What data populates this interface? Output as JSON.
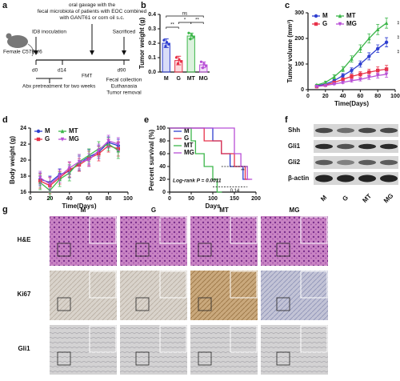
{
  "panel_a": {
    "label": "a",
    "mouse": "Female C57BL/6",
    "inoculation": "ID8 inoculation",
    "gavage": "oral gavage with the fecal microbiota of patients with EOC combined with GANT61 or corn oil s.c.",
    "sacrificed": "Sacrificed",
    "d0": "d0",
    "d14": "d14",
    "fmt": "FMT",
    "d90": "d90",
    "abx": "Abx pretreatment for two weeks",
    "end": [
      "Fecal collection",
      "Euthanasia",
      "Tumor removal"
    ]
  },
  "chart_data": [
    {
      "type": "bar",
      "label": "b",
      "ylabel": "Tumor weight (g)",
      "categories": [
        "M",
        "G",
        "MT",
        "MG"
      ],
      "values": [
        0.2,
        0.08,
        0.25,
        0.05
      ],
      "errors": [
        0.03,
        0.03,
        0.02,
        0.02
      ],
      "colors": [
        "#2f3fd0",
        "#e8334a",
        "#3cb64a",
        "#b84fd6"
      ],
      "ylim": [
        0,
        0.4
      ],
      "yticks": [
        {
          "value": 0,
          "label": "0.0"
        },
        0.1,
        0.2,
        0.3,
        0.4
      ],
      "annotations": [
        "**",
        "*",
        "ns",
        "**"
      ]
    },
    {
      "type": "line",
      "label": "c",
      "ylabel": "Tumor volume (mm³)",
      "xlabel": "Time(Days)",
      "x": [
        10,
        20,
        30,
        40,
        50,
        60,
        70,
        80,
        90
      ],
      "xlim": [
        0,
        100
      ],
      "xticks": [
        0,
        20,
        40,
        60,
        80,
        100
      ],
      "ylim": [
        0,
        300
      ],
      "yticks": [
        0,
        100,
        200,
        300
      ],
      "legend_columns": 2,
      "series": [
        {
          "name": "M",
          "color": "#2f3fd0",
          "marker": "circle",
          "values": [
            15,
            22,
            35,
            55,
            75,
            100,
            130,
            160,
            185
          ],
          "errors": [
            3,
            4,
            6,
            8,
            10,
            12,
            14,
            15,
            18
          ]
        },
        {
          "name": "G",
          "color": "#e8334a",
          "marker": "square",
          "values": [
            12,
            18,
            28,
            40,
            52,
            60,
            68,
            75,
            80
          ],
          "errors": [
            2,
            3,
            4,
            6,
            8,
            10,
            12,
            14,
            15
          ]
        },
        {
          "name": "MT",
          "color": "#3cb64a",
          "marker": "triangle",
          "values": [
            18,
            28,
            50,
            80,
            120,
            160,
            200,
            235,
            260
          ],
          "errors": [
            3,
            5,
            8,
            10,
            12,
            15,
            18,
            20,
            20
          ]
        },
        {
          "name": "MG",
          "color": "#b84fd6",
          "marker": "triangle-down",
          "values": [
            12,
            16,
            22,
            28,
            35,
            40,
            48,
            55,
            60
          ],
          "errors": [
            2,
            2,
            3,
            4,
            5,
            6,
            8,
            10,
            12
          ]
        }
      ],
      "annotations": [
        "**",
        "**",
        "**"
      ]
    },
    {
      "type": "line",
      "label": "d",
      "ylabel": "Body weight (g)",
      "xlabel": "Time(Days)",
      "x": [
        10,
        20,
        30,
        40,
        50,
        60,
        70,
        80,
        90
      ],
      "xlim": [
        0,
        100
      ],
      "xticks": [
        0,
        20,
        40,
        60,
        80,
        100
      ],
      "ylim": [
        16,
        24
      ],
      "yticks": [
        16,
        18,
        20,
        22,
        24
      ],
      "legend_columns": 2,
      "series": [
        {
          "name": "M",
          "color": "#2f3fd0",
          "marker": "circle",
          "values": [
            17.6,
            17.2,
            18.2,
            18.6,
            19.6,
            20.4,
            21.0,
            22.2,
            21.8
          ],
          "errors": [
            0.8,
            0.8,
            0.7,
            0.8,
            0.9,
            0.9,
            0.8,
            0.7,
            0.8
          ]
        },
        {
          "name": "G",
          "color": "#e8334a",
          "marker": "square",
          "values": [
            17.4,
            16.8,
            17.8,
            18.8,
            19.4,
            20.2,
            20.8,
            21.8,
            21.4
          ],
          "errors": [
            0.9,
            1.0,
            0.8,
            0.9,
            0.8,
            0.9,
            0.9,
            0.8,
            0.9
          ]
        },
        {
          "name": "MT",
          "color": "#3cb64a",
          "marker": "triangle",
          "values": [
            17.2,
            16.2,
            17.6,
            18.4,
            19.8,
            20.6,
            21.4,
            22.0,
            21.2
          ],
          "errors": [
            0.9,
            1.1,
            0.9,
            1.0,
            0.9,
            0.8,
            0.9,
            0.8,
            1.0
          ]
        },
        {
          "name": "MG",
          "color": "#b84fd6",
          "marker": "triangle-down",
          "values": [
            17.8,
            17.0,
            18.0,
            19.0,
            19.8,
            20.0,
            21.2,
            22.4,
            22.0
          ],
          "errors": [
            0.8,
            0.9,
            0.8,
            0.8,
            0.9,
            0.8,
            0.8,
            0.7,
            0.8
          ]
        }
      ]
    },
    {
      "type": "step",
      "label": "e",
      "ylabel": "Percent survival (%)",
      "xlabel": "Days",
      "xlim": [
        0,
        200
      ],
      "xticks": [
        0,
        50,
        100,
        150,
        200
      ],
      "ylim": [
        0,
        100
      ],
      "yticks": [
        0,
        20,
        40,
        60,
        80,
        100
      ],
      "legend_columns": 1,
      "series": [
        {
          "name": "M",
          "color": "#2f3fd0",
          "x": [
            0,
            100,
            120,
            140,
            170
          ],
          "values": [
            100,
            80,
            60,
            40,
            20
          ]
        },
        {
          "name": "G",
          "color": "#e8334a",
          "x": [
            0,
            80,
            120,
            150,
            175
          ],
          "values": [
            100,
            80,
            60,
            40,
            20
          ]
        },
        {
          "name": "MT",
          "color": "#3cb64a",
          "x": [
            0,
            50,
            60,
            80,
            100,
            110
          ],
          "values": [
            100,
            80,
            60,
            40,
            20,
            0
          ]
        },
        {
          "name": "MG",
          "color": "#b84fd6",
          "x": [
            0,
            150,
            165,
            180
          ],
          "values": [
            100,
            60,
            40,
            20
          ]
        }
      ],
      "annotations": [
        "Log-rank P = 0.0011",
        "0.14",
        "**"
      ]
    }
  ],
  "panel_f": {
    "label": "f",
    "rows": [
      "Shh",
      "Gli1",
      "Gli2",
      "β-actin"
    ],
    "lanes": [
      "M",
      "G",
      "MT",
      "MG"
    ]
  },
  "panel_g": {
    "label": "g",
    "columns": [
      "M",
      "G",
      "MT",
      "MG"
    ],
    "rows": [
      "H&E",
      "Ki67",
      "Gli1"
    ]
  }
}
